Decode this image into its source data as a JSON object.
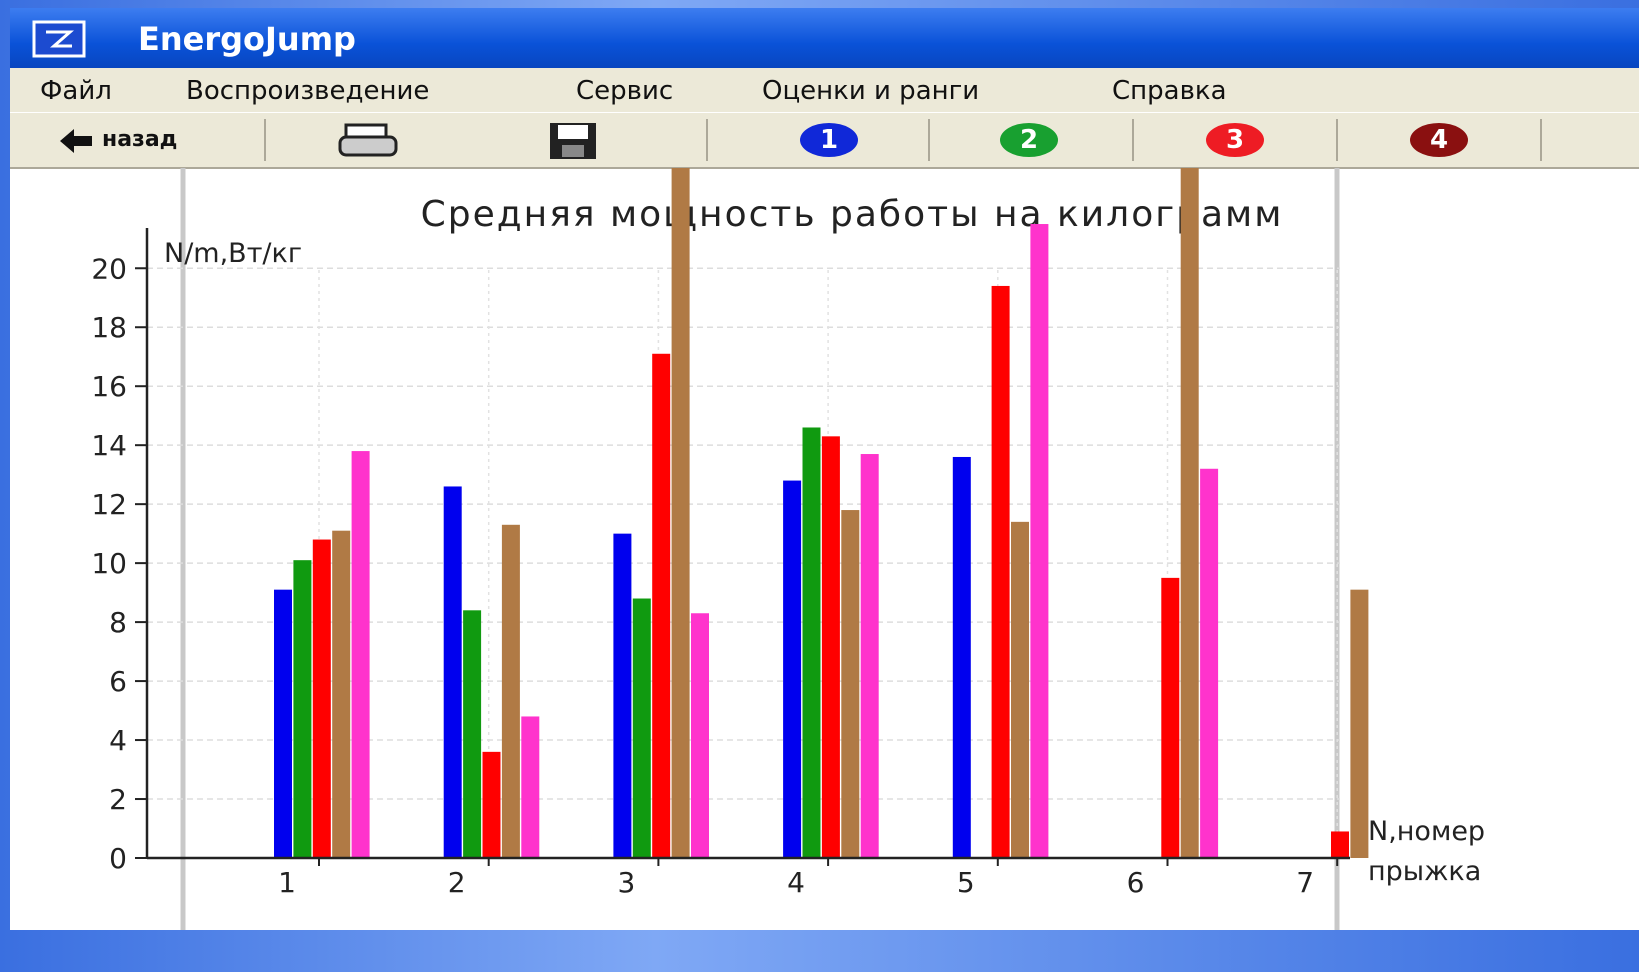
{
  "window": {
    "title": "EnergoJump",
    "menu": [
      "Файл",
      "Воспроизведение",
      "Сервис",
      "Оценки и ранги",
      "Справка"
    ],
    "toolbar": {
      "back": "назад",
      "numbers": [
        "1",
        "2",
        "3",
        "4"
      ]
    }
  },
  "chart_data": {
    "type": "bar",
    "title": "Средняя мощность работы на килограмм",
    "y_label": "N/m,Вт/кг",
    "x_label": "N,номер прыжка",
    "categories": [
      "1",
      "2",
      "3",
      "4",
      "5",
      "6",
      "7"
    ],
    "series": [
      {
        "color": "#0000ee",
        "values": [
          9.1,
          12.6,
          11.0,
          12.8,
          13.6,
          null,
          null
        ]
      },
      {
        "color": "#109a10",
        "values": [
          10.1,
          8.4,
          8.8,
          14.6,
          null,
          null,
          null
        ]
      },
      {
        "color": "#ff0000",
        "values": [
          10.8,
          3.6,
          17.1,
          14.3,
          19.4,
          9.5,
          0.9
        ]
      },
      {
        "color": "#b07a45",
        "values": [
          11.1,
          11.3,
          24,
          11.8,
          11.4,
          24,
          9.1
        ]
      },
      {
        "color": "#ff33cc",
        "values": [
          13.8,
          4.8,
          8.3,
          13.7,
          21.5,
          13.2,
          null
        ]
      }
    ],
    "ylim": [
      0,
      23.4
    ],
    "yticks": [
      0,
      2,
      4,
      6,
      8,
      10,
      12,
      14,
      16,
      18,
      20
    ],
    "grid": true
  }
}
